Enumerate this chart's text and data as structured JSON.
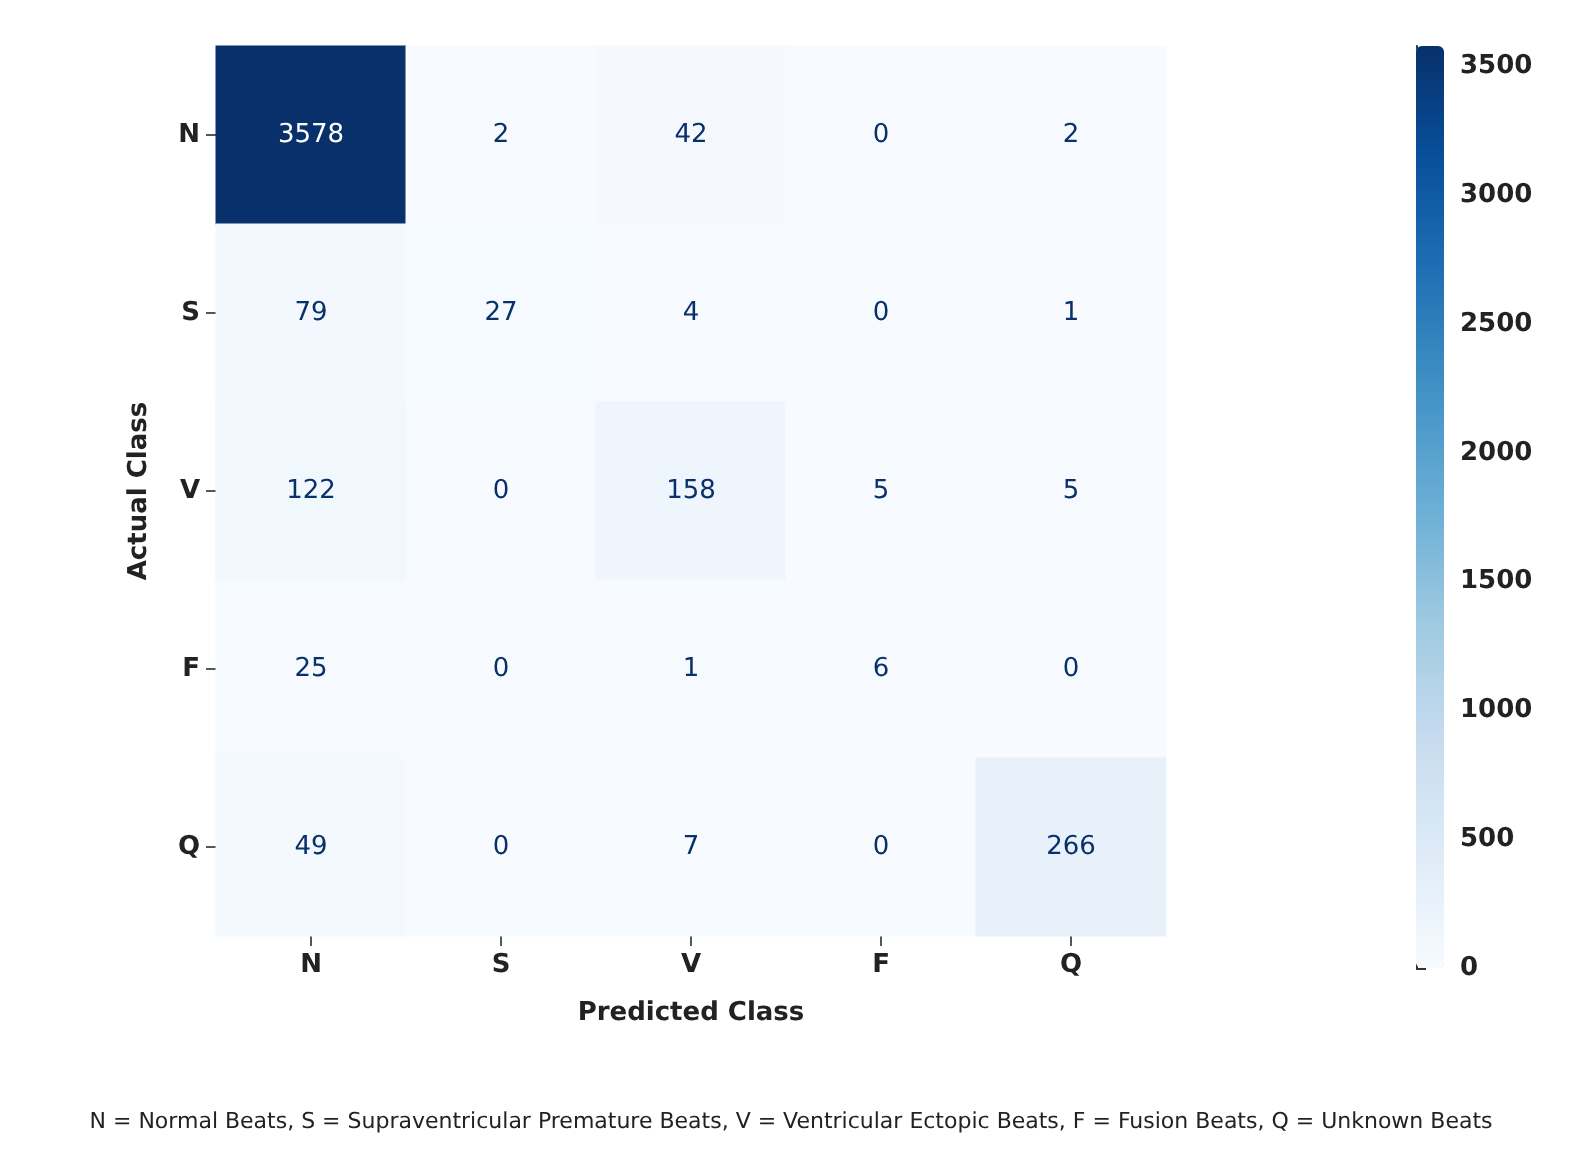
{
  "chart_data": {
    "type": "heatmap",
    "xlabel": "Predicted Class",
    "ylabel": "Actual Class",
    "categories": [
      "N",
      "S",
      "V",
      "F",
      "Q"
    ],
    "y_categories": [
      "N",
      "S",
      "V",
      "F",
      "Q"
    ],
    "cells": [
      [
        3578,
        2,
        42,
        0,
        2
      ],
      [
        79,
        27,
        4,
        0,
        1
      ],
      [
        122,
        0,
        158,
        5,
        5
      ],
      [
        25,
        0,
        1,
        6,
        0
      ],
      [
        49,
        0,
        7,
        0,
        266
      ]
    ],
    "data_labels": true,
    "clim": [
      0,
      3578
    ],
    "cticks": [
      0,
      500,
      1000,
      1500,
      2000,
      2500,
      3000,
      3500
    ],
    "annotations": [
      "N = Normal Beats, S = Supraventricular Premature Beats, V = Ventricular Ectopic Beats, F = Fusion Beats, Q = Unknown Beats"
    ]
  }
}
